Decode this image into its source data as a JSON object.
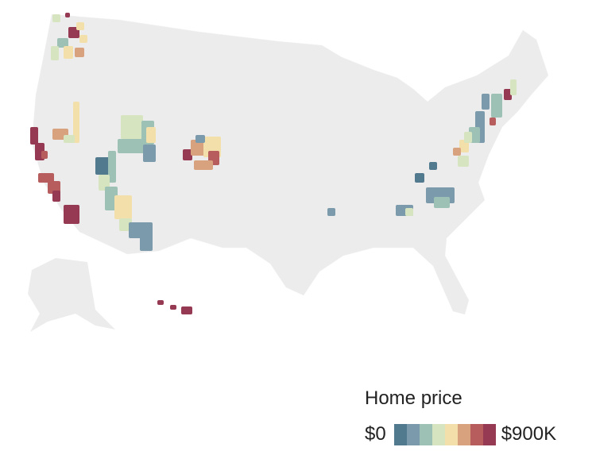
{
  "legend": {
    "title": "Home price",
    "min_label": "$0",
    "max_label": "$900K",
    "colors": [
      "#527a8f",
      "#7b9aab",
      "#9dc1b5",
      "#d7e4c0",
      "#f2dfaa",
      "#d9a27e",
      "#b85d5d",
      "#963a53"
    ]
  },
  "base_color": "#ececec"
}
